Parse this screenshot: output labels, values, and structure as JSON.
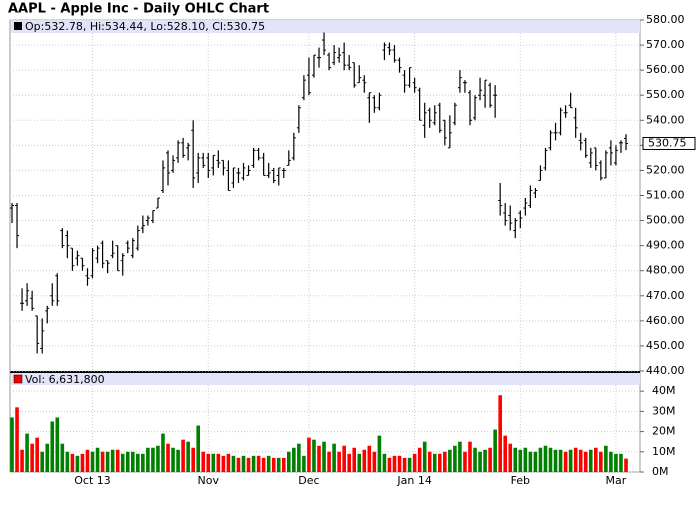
{
  "chart_data": [
    {
      "type": "ohlc",
      "title": "AAPL - Apple Inc - Daily OHLC Chart",
      "header": "Op:532.78, Hi:534.44, Lo:528.10, Cl:530.75",
      "color": "#000000",
      "grid": true,
      "ylim": [
        440,
        580
      ],
      "yticks": [
        {
          "value": 440,
          "label": "440.00"
        },
        {
          "value": 450,
          "label": "450.00"
        },
        {
          "value": 460,
          "label": "460.00"
        },
        {
          "value": 470,
          "label": "470.00"
        },
        {
          "value": 480,
          "label": "480.00"
        },
        {
          "value": 490,
          "label": "490.00"
        },
        {
          "value": 500,
          "label": "500.00"
        },
        {
          "value": 510,
          "label": "510.00"
        },
        {
          "value": 520,
          "label": "520.00"
        },
        {
          "value": 530,
          "label": "530.00"
        },
        {
          "value": 540,
          "label": "540.00"
        },
        {
          "value": 550,
          "label": "550.00"
        },
        {
          "value": 560,
          "label": "560.00"
        },
        {
          "value": 570,
          "label": "570.00"
        },
        {
          "value": 580,
          "label": "580.00"
        }
      ],
      "ohlc": [
        [
          505,
          507,
          499,
          506
        ],
        [
          506,
          507,
          489,
          494
        ],
        [
          467,
          473,
          464,
          467
        ],
        [
          468,
          475,
          466,
          472
        ],
        [
          469,
          472,
          464,
          465
        ],
        [
          462,
          462,
          447,
          451
        ],
        [
          449,
          461,
          447,
          456
        ],
        [
          464,
          466,
          459,
          465
        ],
        [
          470,
          475,
          466,
          468
        ],
        [
          478,
          479,
          466,
          468
        ],
        [
          496,
          497,
          489,
          490
        ],
        [
          494,
          496,
          485,
          490
        ],
        [
          489,
          489,
          480,
          482
        ],
        [
          485,
          488,
          482,
          486
        ],
        [
          485,
          485,
          480,
          482
        ],
        [
          478,
          481,
          474,
          477
        ],
        [
          478,
          489,
          477,
          488
        ],
        [
          485,
          490,
          483,
          489
        ],
        [
          491,
          492,
          481,
          483
        ],
        [
          484,
          484,
          479,
          483
        ],
        [
          486,
          492,
          485,
          487
        ],
        [
          490,
          490,
          480,
          480
        ],
        [
          484,
          487,
          478,
          486
        ],
        [
          491,
          492,
          487,
          489
        ],
        [
          486,
          493,
          485,
          492
        ],
        [
          489,
          498,
          488,
          496
        ],
        [
          497,
          502,
          495,
          498
        ],
        [
          500,
          502,
          498,
          501
        ],
        [
          500,
          504,
          499,
          504
        ],
        [
          505,
          509,
          505,
          509
        ],
        [
          512,
          524,
          511,
          521
        ],
        [
          527,
          528,
          514,
          519
        ],
        [
          520,
          526,
          519,
          524
        ],
        [
          525,
          532,
          523,
          531
        ],
        [
          531,
          533,
          525,
          526
        ],
        [
          529,
          531,
          524,
          530
        ],
        [
          536,
          540,
          513,
          517
        ],
        [
          519,
          527,
          515,
          525
        ],
        [
          525,
          527,
          521,
          522
        ],
        [
          525,
          527,
          517,
          520
        ],
        [
          521,
          526,
          518,
          526
        ],
        [
          524,
          528,
          521,
          523
        ],
        [
          524,
          524,
          518,
          521
        ],
        [
          520,
          524,
          512,
          512
        ],
        [
          515,
          521,
          513,
          521
        ],
        [
          519,
          521,
          515,
          519
        ],
        [
          517,
          523,
          516,
          521
        ],
        [
          518,
          522,
          518,
          520
        ],
        [
          522,
          529,
          521,
          528
        ],
        [
          528,
          529,
          524,
          525
        ],
        [
          525,
          527,
          518,
          518
        ],
        [
          518,
          523,
          517,
          519
        ],
        [
          520,
          521,
          515,
          516
        ],
        [
          518,
          521,
          514,
          521
        ],
        [
          520,
          521,
          517,
          520
        ],
        [
          522,
          528,
          522,
          524
        ],
        [
          525,
          535,
          524,
          533
        ],
        [
          537,
          546,
          535,
          545
        ],
        [
          549,
          558,
          548,
          556
        ],
        [
          558,
          565,
          550,
          551
        ],
        [
          558,
          566,
          557,
          566
        ],
        [
          565,
          569,
          561,
          565
        ],
        [
          572,
          575,
          566,
          568
        ],
        [
          566,
          567,
          560,
          561
        ],
        [
          563,
          570,
          562,
          567
        ],
        [
          565,
          569,
          563,
          566
        ],
        [
          567,
          571,
          560,
          562
        ],
        [
          562,
          566,
          560,
          561
        ],
        [
          563,
          563,
          553,
          554
        ],
        [
          555,
          562,
          555,
          557
        ],
        [
          556,
          558,
          551,
          555
        ],
        [
          549,
          551,
          539,
          551
        ],
        [
          549,
          550,
          543,
          545
        ],
        [
          545,
          551,
          544,
          550
        ],
        [
          568,
          571,
          564,
          570
        ],
        [
          569,
          571,
          566,
          568
        ],
        [
          568,
          570,
          563,
          564
        ],
        [
          564,
          565,
          559,
          561
        ],
        [
          558,
          560,
          551,
          554
        ],
        [
          554,
          561,
          553,
          561
        ],
        [
          555,
          557,
          551,
          553
        ],
        [
          552,
          553,
          540,
          540
        ],
        [
          538,
          547,
          533,
          543
        ],
        [
          544,
          545,
          537,
          540
        ],
        [
          539,
          546,
          538,
          543
        ],
        [
          546,
          547,
          535,
          536
        ],
        [
          540,
          540,
          530,
          533
        ],
        [
          529,
          542,
          529,
          535
        ],
        [
          539,
          547,
          538,
          546
        ],
        [
          553,
          560,
          551,
          557
        ],
        [
          555,
          556,
          551,
          555
        ],
        [
          551,
          552,
          538,
          540
        ],
        [
          541,
          550,
          540,
          549
        ],
        [
          550,
          557,
          548,
          552
        ],
        [
          550,
          556,
          545,
          556
        ],
        [
          554,
          555,
          545,
          546
        ],
        [
          550,
          554,
          541,
          550
        ],
        [
          508,
          515,
          502,
          506
        ],
        [
          503,
          507,
          498,
          500
        ],
        [
          502,
          506,
          496,
          499
        ],
        [
          496,
          501,
          493,
          500
        ],
        [
          503,
          504,
          497,
          501
        ],
        [
          505,
          509,
          502,
          507
        ],
        [
          506,
          514,
          505,
          512
        ],
        [
          511,
          513,
          509,
          512
        ],
        [
          516,
          522,
          516,
          520
        ],
        [
          521,
          529,
          520,
          528
        ],
        [
          529,
          536,
          528,
          535
        ],
        [
          535,
          539,
          532,
          535
        ],
        [
          535,
          545,
          534,
          544
        ],
        [
          543,
          546,
          541,
          543
        ],
        [
          546,
          551,
          545,
          545
        ],
        [
          541,
          545,
          533,
          537
        ],
        [
          532,
          535,
          528,
          531
        ],
        [
          532,
          533,
          525,
          526
        ],
        [
          523,
          529,
          521,
          527
        ],
        [
          529,
          529,
          520,
          522
        ],
        [
          523,
          524,
          516,
          517
        ],
        [
          517,
          528,
          517,
          527
        ],
        [
          529,
          532,
          522,
          527
        ],
        [
          523,
          530,
          522,
          528
        ],
        [
          531,
          532,
          527,
          531
        ],
        [
          532.78,
          534.44,
          528.1,
          530.75
        ]
      ]
    },
    {
      "type": "bar",
      "header": "Vol: 6,631,800",
      "up_color": "#008000",
      "down_color": "#ff0000",
      "grid": true,
      "ylim": [
        0,
        49
      ],
      "yticks": [
        {
          "value": 0,
          "label": "0M"
        },
        {
          "value": 10,
          "label": "10M"
        },
        {
          "value": 20,
          "label": "20M"
        },
        {
          "value": 30,
          "label": "30M"
        },
        {
          "value": 40,
          "label": "40M"
        }
      ],
      "categories": [
        null,
        null,
        null,
        null,
        null,
        null,
        null,
        null,
        null,
        null,
        null,
        null,
        null,
        null,
        null,
        null,
        "Oct 13",
        null,
        null,
        null,
        null,
        null,
        null,
        null,
        null,
        null,
        null,
        null,
        null,
        null,
        null,
        null,
        null,
        null,
        null,
        null,
        null,
        null,
        null,
        "Nov",
        null,
        null,
        null,
        null,
        null,
        null,
        null,
        null,
        null,
        null,
        null,
        null,
        null,
        null,
        null,
        null,
        null,
        null,
        null,
        "Dec",
        null,
        null,
        null,
        null,
        null,
        null,
        null,
        null,
        null,
        null,
        null,
        null,
        null,
        null,
        null,
        null,
        null,
        null,
        null,
        null,
        "Jan 14",
        null,
        null,
        null,
        null,
        null,
        null,
        null,
        null,
        null,
        null,
        null,
        null,
        null,
        null,
        null,
        null,
        null,
        null,
        null,
        null,
        "Feb",
        null,
        null,
        null,
        null,
        null,
        null,
        null,
        null,
        null,
        null,
        null,
        null,
        null,
        null,
        null,
        null,
        null,
        null,
        "Mar",
        null,
        null
      ],
      "values": [
        27,
        32,
        11,
        19,
        14,
        17,
        10,
        14,
        25,
        27,
        14,
        10,
        9,
        8,
        9,
        11,
        10,
        12,
        10,
        10,
        11,
        11,
        9,
        10,
        10,
        9,
        9,
        12,
        12,
        13,
        19,
        14,
        12,
        11,
        16,
        15,
        12,
        23,
        10,
        9,
        9,
        9,
        8,
        9,
        8,
        7,
        8,
        7,
        8,
        8,
        7,
        8,
        7,
        7,
        7,
        10,
        12,
        14,
        8,
        17,
        16,
        13,
        15,
        10,
        14,
        10,
        13,
        9,
        12,
        9,
        11,
        13,
        10,
        18,
        9,
        7,
        8,
        8,
        7,
        7,
        9,
        12,
        15,
        10,
        9,
        9,
        10,
        11,
        13,
        15,
        10,
        15,
        12,
        10,
        11,
        12,
        21,
        38,
        18,
        14,
        12,
        11,
        12,
        10,
        10,
        12,
        13,
        12,
        11,
        11,
        10,
        11,
        12,
        11,
        10,
        11,
        12,
        10,
        13,
        10,
        9,
        9,
        6.6318
      ]
    }
  ]
}
